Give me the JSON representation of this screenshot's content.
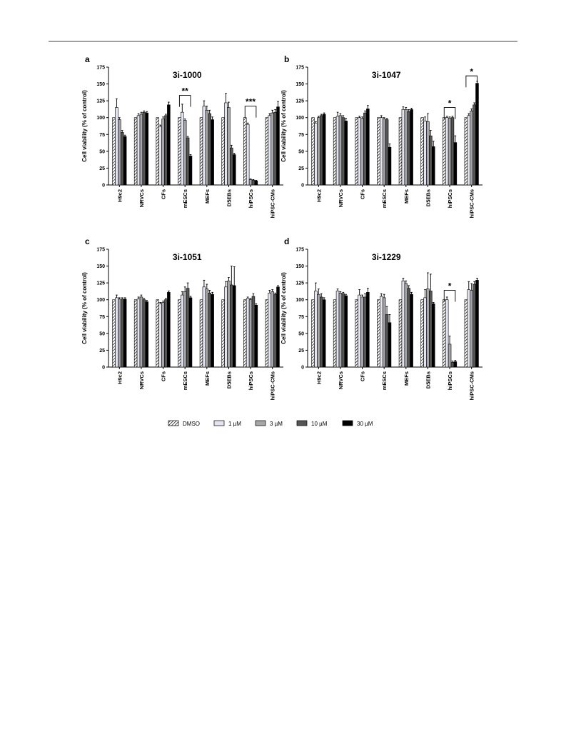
{
  "chart_data": [
    {
      "type": "bar",
      "panel": "a",
      "title": "3i-1000",
      "y_label": "Cell viability (% of control)",
      "categories": [
        "H9c2",
        "NRVCs",
        "CFs",
        "mESCs",
        "MEFs",
        "D5EBs",
        "hiPSCs",
        "hiPSC-CMs"
      ],
      "ylim": [
        0,
        175
      ],
      "yticks": [
        0,
        25,
        50,
        75,
        100,
        125,
        150,
        175
      ],
      "annotations": [
        "**",
        "***"
      ],
      "series": [
        {
          "name": "DMSO",
          "color": "#ffffff",
          "hatch": true,
          "values": [
            100,
            100,
            100,
            100,
            100,
            100,
            100,
            100
          ]
        },
        {
          "name": "1 µM",
          "color": "#e4e4f2",
          "values": [
            115,
            103,
            87,
            108,
            117,
            122,
            90,
            103
          ],
          "errors": [
            13,
            3,
            2,
            12,
            8,
            14,
            2,
            3
          ]
        },
        {
          "name": "3 µM",
          "color": "#a6a6a6",
          "values": [
            97,
            105,
            98,
            96,
            111,
            115,
            8,
            107
          ],
          "errors": [
            3,
            3,
            3,
            2,
            6,
            8,
            1,
            4
          ]
        },
        {
          "name": "10 µM",
          "color": "#555555",
          "values": [
            78,
            108,
            103,
            70,
            106,
            55,
            7,
            108
          ],
          "errors": [
            3,
            2,
            2,
            2,
            5,
            4,
            1,
            4
          ]
        },
        {
          "name": "30 µM",
          "color": "#000000",
          "values": [
            72,
            107,
            119,
            43,
            97,
            45,
            6,
            116
          ],
          "errors": [
            2,
            2,
            4,
            2,
            4,
            2,
            1,
            8
          ]
        }
      ]
    },
    {
      "type": "bar",
      "panel": "b",
      "title": "3i-1047",
      "y_label": "Cell viability (% of control)",
      "categories": [
        "H9c2",
        "NRVCs",
        "CFs",
        "mESCs",
        "MEFs",
        "D5EBs",
        "hiPSCs",
        "hiPSC-CMs"
      ],
      "ylim": [
        0,
        175
      ],
      "yticks": [
        0,
        25,
        50,
        75,
        100,
        125,
        150,
        175
      ],
      "annotations": [
        "*",
        "*"
      ],
      "series": [
        {
          "color": "#ffffff",
          "hatch": true,
          "values": [
            100,
            100,
            100,
            100,
            100,
            100,
            100,
            100
          ]
        },
        {
          "color": "#e4e4f2",
          "values": [
            92,
            102,
            100,
            100,
            112,
            95,
            100,
            103
          ],
          "errors": [
            2,
            6,
            2,
            3,
            4,
            6,
            2,
            3
          ]
        },
        {
          "color": "#a6a6a6",
          "values": [
            100,
            103,
            99,
            98,
            112,
            94,
            99,
            110
          ],
          "errors": [
            2,
            3,
            2,
            2,
            3,
            12,
            2,
            3
          ]
        },
        {
          "color": "#555555",
          "values": [
            103,
            100,
            107,
            97,
            109,
            73,
            100,
            119
          ],
          "errors": [
            2,
            3,
            3,
            2,
            3,
            8,
            2,
            3
          ]
        },
        {
          "color": "#000000",
          "values": [
            105,
            95,
            113,
            56,
            112,
            57,
            63,
            151
          ],
          "errors": [
            2,
            4,
            5,
            5,
            2,
            8,
            10,
            3
          ]
        }
      ]
    },
    {
      "type": "bar",
      "panel": "c",
      "title": "3i-1051",
      "y_label": "Cell viability (% of control)",
      "categories": [
        "H9c2",
        "NRVCs",
        "CFs",
        "mESCs",
        "MEFs",
        "D5EBs",
        "hiPSCs",
        "hiPSC-CMs"
      ],
      "ylim": [
        0,
        175
      ],
      "yticks": [
        0,
        25,
        50,
        75,
        100,
        125,
        150,
        175
      ],
      "annotations": [],
      "series": [
        {
          "color": "#ffffff",
          "hatch": true,
          "values": [
            100,
            100,
            100,
            100,
            100,
            100,
            100,
            100
          ]
        },
        {
          "color": "#e4e4f2",
          "values": [
            103,
            101,
            94,
            107,
            119,
            119,
            102,
            110
          ],
          "errors": [
            4,
            3,
            2,
            5,
            10,
            8,
            2,
            4
          ]
        },
        {
          "color": "#a6a6a6",
          "values": [
            101,
            104,
            96,
            112,
            116,
            128,
            100,
            112
          ],
          "errors": [
            2,
            3,
            2,
            7,
            7,
            5,
            2,
            3
          ]
        },
        {
          "color": "#555555",
          "values": [
            101,
            100,
            100,
            117,
            110,
            122,
            105,
            108
          ],
          "errors": [
            2,
            2,
            2,
            8,
            4,
            28,
            4,
            2
          ]
        },
        {
          "color": "#000000",
          "values": [
            101,
            97,
            111,
            103,
            108,
            121,
            92,
            119
          ],
          "errors": [
            2,
            2,
            2,
            2,
            3,
            28,
            2,
            2
          ]
        }
      ]
    },
    {
      "type": "bar",
      "panel": "d",
      "title": "3i-1229",
      "y_label": "Cell viability (% of control)",
      "categories": [
        "H9c2",
        "NRVCs",
        "CFs",
        "mESCs",
        "MEFs",
        "D5EBs",
        "hiPSCs",
        "hiPSC-CMs"
      ],
      "ylim": [
        0,
        175
      ],
      "yticks": [
        0,
        25,
        50,
        75,
        100,
        125,
        150,
        175
      ],
      "annotations": [
        "*"
      ],
      "series": [
        {
          "color": "#ffffff",
          "hatch": true,
          "values": [
            100,
            100,
            100,
            100,
            100,
            100,
            100,
            100
          ]
        },
        {
          "color": "#e4e4f2",
          "values": [
            113,
            113,
            107,
            105,
            128,
            103,
            100,
            115
          ],
          "errors": [
            12,
            3,
            8,
            4,
            4,
            12,
            4,
            12
          ]
        },
        {
          "color": "#a6a6a6",
          "values": [
            108,
            110,
            104,
            103,
            124,
            116,
            34,
            114
          ],
          "errors": [
            8,
            2,
            3,
            5,
            4,
            24,
            12,
            10
          ]
        },
        {
          "color": "#555555",
          "values": [
            104,
            109,
            104,
            78,
            117,
            113,
            7,
            123
          ],
          "errors": [
            5,
            2,
            5,
            12,
            4,
            25,
            2,
            4
          ]
        },
        {
          "color": "#000000",
          "values": [
            100,
            106,
            111,
            66,
            108,
            94,
            8,
            129
          ],
          "errors": [
            3,
            2,
            6,
            12,
            3,
            2,
            2,
            3
          ]
        }
      ]
    }
  ]
}
